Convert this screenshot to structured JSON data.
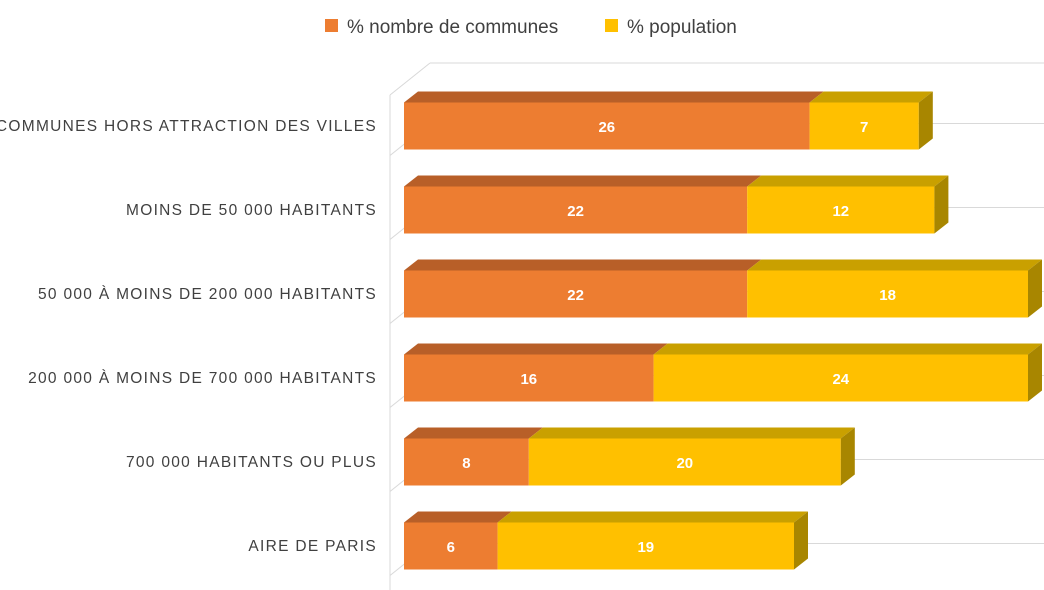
{
  "chart_data": {
    "type": "bar",
    "orientation": "horizontal",
    "stacked": true,
    "three_d": true,
    "legend_position": "top",
    "grid": false,
    "data_labels": true,
    "xlim": [
      0,
      42
    ],
    "categories": [
      "COMMUNES HORS ATTRACTION DES VILLES",
      "MOINS DE 50 000 HABITANTS",
      "50 000 À MOINS DE 200 000 HABITANTS",
      "200 000 À MOINS DE 700 000 HABITANTS",
      "700 000 HABITANTS OU PLUS",
      "AIRE DE PARIS"
    ],
    "series": [
      {
        "name": "% nombre de communes",
        "color": "#ED7D31",
        "top_color": "#B85F28",
        "side_color": "#A6541F",
        "values": [
          26,
          22,
          22,
          16,
          8,
          6
        ]
      },
      {
        "name": "% population",
        "color": "#FFC000",
        "top_color": "#C9A000",
        "side_color": "#A88600",
        "values": [
          7,
          12,
          18,
          24,
          20,
          19
        ]
      }
    ]
  }
}
